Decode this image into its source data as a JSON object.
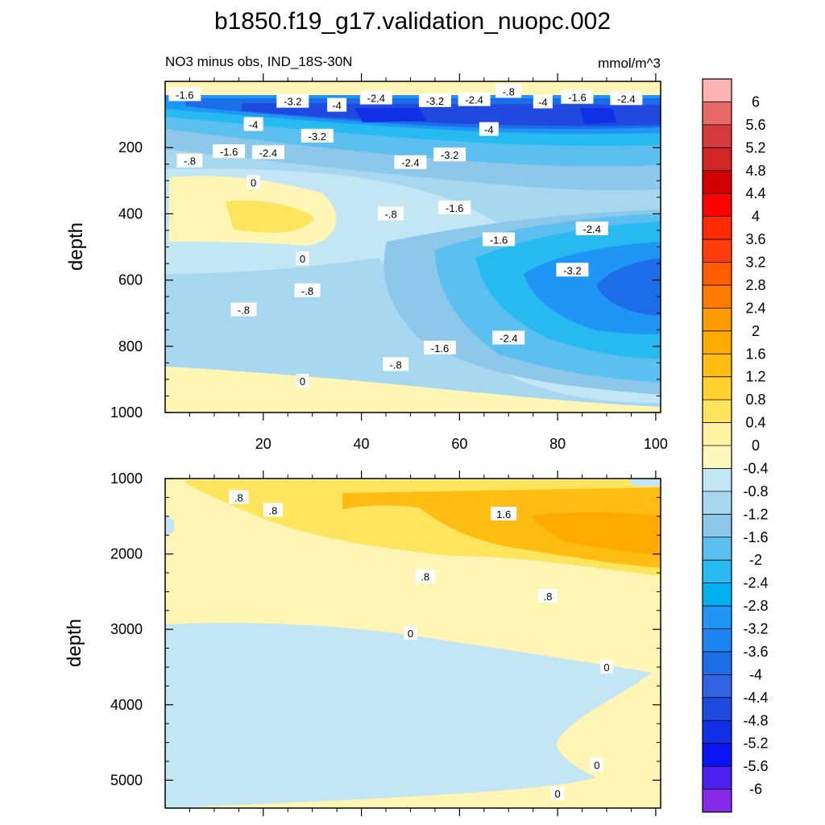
{
  "title": "b1850.f19_g17.validation_nuopc.002",
  "subtitle_left": "NO3 minus obs, IND_18S-30N",
  "subtitle_right": "mmol/m^3",
  "ylabel": "depth",
  "chart_data": [
    {
      "type": "heatmap",
      "panel": "upper",
      "xlim": [
        0,
        101
      ],
      "ylim": [
        1000,
        0
      ],
      "x_ticks": [
        20,
        40,
        60,
        80,
        100
      ],
      "y_ticks": [
        200,
        400,
        600,
        800,
        1000
      ],
      "ylabel": "depth",
      "contour_labels": [
        {
          "text": "-1.6",
          "x": 4,
          "y": 40
        },
        {
          "text": "-3.2",
          "x": 26,
          "y": 60
        },
        {
          "text": "-4",
          "x": 35,
          "y": 72
        },
        {
          "text": "-2.4",
          "x": 43,
          "y": 50
        },
        {
          "text": "-3.2",
          "x": 55,
          "y": 58
        },
        {
          "text": "-2.4",
          "x": 63,
          "y": 55
        },
        {
          "text": "-.8",
          "x": 70,
          "y": 30
        },
        {
          "text": "-4",
          "x": 77,
          "y": 62
        },
        {
          "text": "-1.6",
          "x": 84,
          "y": 48
        },
        {
          "text": "-2.4",
          "x": 94,
          "y": 52
        },
        {
          "text": "-4",
          "x": 18,
          "y": 130
        },
        {
          "text": "-3.2",
          "x": 31,
          "y": 165
        },
        {
          "text": "-4",
          "x": 66,
          "y": 145
        },
        {
          "text": "-1.6",
          "x": 13,
          "y": 212
        },
        {
          "text": "-2.4",
          "x": 21,
          "y": 215
        },
        {
          "text": "-.8",
          "x": 5,
          "y": 240
        },
        {
          "text": "-2.4",
          "x": 50,
          "y": 245
        },
        {
          "text": "-3.2",
          "x": 58,
          "y": 222
        },
        {
          "text": "0",
          "x": 18,
          "y": 305
        },
        {
          "text": "-.8",
          "x": 46,
          "y": 400
        },
        {
          "text": "-1.6",
          "x": 59,
          "y": 382
        },
        {
          "text": "-1.6",
          "x": 68,
          "y": 478
        },
        {
          "text": "-2.4",
          "x": 87,
          "y": 445
        },
        {
          "text": "0",
          "x": 28,
          "y": 535
        },
        {
          "text": "-3.2",
          "x": 83,
          "y": 570
        },
        {
          "text": "-.8",
          "x": 29,
          "y": 632
        },
        {
          "text": "-.8",
          "x": 16,
          "y": 690
        },
        {
          "text": "-2.4",
          "x": 70,
          "y": 775
        },
        {
          "text": "-1.6",
          "x": 56,
          "y": 805
        },
        {
          "text": "-.8",
          "x": 47,
          "y": 855
        },
        {
          "text": "0",
          "x": 28,
          "y": 905
        }
      ]
    },
    {
      "type": "heatmap",
      "panel": "lower",
      "xlim": [
        0,
        101
      ],
      "ylim": [
        5370,
        1000
      ],
      "y_ticks": [
        1000,
        2000,
        3000,
        4000,
        5000
      ],
      "ylabel": "depth",
      "contour_labels": [
        {
          "text": ".8",
          "x": 15,
          "y": 1250
        },
        {
          "text": ".8",
          "x": 22,
          "y": 1420
        },
        {
          "text": "1.6",
          "x": 69,
          "y": 1470
        },
        {
          "text": ".8",
          "x": 53,
          "y": 2300
        },
        {
          "text": ".8",
          "x": 78,
          "y": 2560
        },
        {
          "text": "0",
          "x": 50,
          "y": 3050
        },
        {
          "text": "0",
          "x": 90,
          "y": 3500
        },
        {
          "text": "0",
          "x": 88,
          "y": 4800
        },
        {
          "text": "0",
          "x": 80,
          "y": 5180
        }
      ]
    }
  ],
  "colorbar": {
    "labels": [
      "6",
      "5.6",
      "5.2",
      "4.8",
      "4.4",
      "4",
      "3.6",
      "3.2",
      "2.8",
      "2.4",
      "2",
      "1.6",
      "1.2",
      "0.8",
      "0.4",
      "0",
      "-0.4",
      "-0.8",
      "-1.2",
      "-1.6",
      "-2",
      "-2.4",
      "-2.8",
      "-3.2",
      "-3.6",
      "-4",
      "-4.4",
      "-4.8",
      "-5.2",
      "-5.6",
      "-6"
    ],
    "colors": [
      "#ffb3b3",
      "#ea6868",
      "#d73a3a",
      "#d12626",
      "#d30000",
      "#ff0000",
      "#ff2a00",
      "#ff3d0a",
      "#ff5e00",
      "#ff7c00",
      "#ff9a00",
      "#ffaa00",
      "#ffbd14",
      "#ffd12e",
      "#ffe45e",
      "#fff2a0",
      "#fff8bd",
      "#c3e6f4",
      "#a8d8f0",
      "#8dc8ea",
      "#5bc0ef",
      "#26baf0",
      "#00b0f0",
      "#1f96f5",
      "#1a85f0",
      "#1c6ee8",
      "#3164e3",
      "#2049e0",
      "#1030e8",
      "#0a14f5",
      "#4b20f0",
      "#8828e8"
    ]
  }
}
